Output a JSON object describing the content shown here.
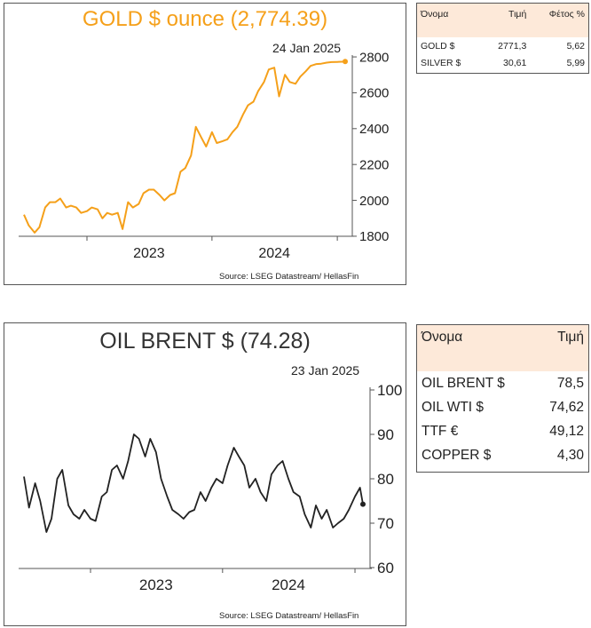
{
  "gold": {
    "title": "GOLD $ ounce (2,774.39)",
    "date": "24 Jan 2025",
    "source": "Source: LSEG Datastream/ HellasFin",
    "color": "#f5a01a",
    "chart_data": {
      "type": "line",
      "title": "GOLD $ ounce (2,774.39)",
      "x_labels": [
        "2023",
        "2024"
      ],
      "y_ticks": [
        1800,
        2000,
        2200,
        2400,
        2600,
        2800
      ],
      "ylim": [
        1770,
        2830
      ],
      "x_range": [
        "2022-07",
        "2025-01"
      ],
      "series": [
        {
          "x": [
            "2022-07-01",
            "2022-07-15",
            "2022-08-01",
            "2022-08-15",
            "2022-09-01",
            "2022-09-15",
            "2022-10-01",
            "2022-10-15",
            "2022-11-01",
            "2022-11-15",
            "2022-12-01",
            "2022-12-15",
            "2023-01-01",
            "2023-01-15",
            "2023-02-01",
            "2023-02-15",
            "2023-03-01",
            "2023-03-15",
            "2023-04-01",
            "2023-04-15",
            "2023-05-01",
            "2023-05-15",
            "2023-06-01",
            "2023-06-15",
            "2023-07-01",
            "2023-07-15",
            "2023-08-01",
            "2023-08-15",
            "2023-09-01",
            "2023-09-15",
            "2023-10-01",
            "2023-10-15",
            "2023-11-01",
            "2023-11-15",
            "2023-12-01",
            "2023-12-15",
            "2024-01-01",
            "2024-01-15",
            "2024-02-01",
            "2024-02-15",
            "2024-03-01",
            "2024-03-15",
            "2024-04-01",
            "2024-04-15",
            "2024-05-01",
            "2024-05-15",
            "2024-06-01",
            "2024-06-15",
            "2024-07-01",
            "2024-07-15",
            "2024-08-01",
            "2024-08-15",
            "2024-09-01",
            "2024-09-15",
            "2024-10-01",
            "2024-10-15",
            "2024-11-01",
            "2024-11-15",
            "2024-12-01",
            "2024-12-15",
            "2025-01-01",
            "2025-01-15",
            "2025-01-24"
          ],
          "y": [
            1920,
            1860,
            1820,
            1850,
            1960,
            1990,
            1990,
            2010,
            1960,
            1970,
            1960,
            1930,
            1940,
            1960,
            1950,
            1900,
            1930,
            1920,
            1930,
            1840,
            1990,
            1960,
            1980,
            2040,
            2060,
            2060,
            2030,
            2000,
            2030,
            2040,
            2160,
            2180,
            2250,
            2410,
            2350,
            2300,
            2380,
            2320,
            2330,
            2340,
            2380,
            2410,
            2480,
            2530,
            2550,
            2610,
            2660,
            2730,
            2740,
            2580,
            2700,
            2660,
            2650,
            2690,
            2720,
            2750,
            2760,
            2762,
            2768,
            2771,
            2772,
            2773,
            2774
          ],
          "last_value": 2774.39
        }
      ]
    },
    "table": {
      "headers": [
        "Όνομα",
        "Τιμή",
        "Φέτος %"
      ],
      "rows": [
        [
          "GOLD $",
          "2771,3",
          "5,62"
        ],
        [
          "SILVER $",
          "30,61",
          "5,99"
        ]
      ]
    }
  },
  "oil": {
    "title": "OIL BRENT $ (74.28)",
    "date": "23 Jan 2025",
    "source": "Source: LSEG Datastream/ HellasFin",
    "color": "#222222",
    "chart_data": {
      "type": "line",
      "title": "OIL BRENT $ (74.28)",
      "x_labels": [
        "2023",
        "2024"
      ],
      "y_ticks": [
        60,
        70,
        80,
        90,
        100
      ],
      "ylim": [
        60,
        100
      ],
      "x_range": [
        "2022-07",
        "2025-01"
      ],
      "series": [
        {
          "x": [
            "2022-07-01",
            "2022-07-15",
            "2022-08-01",
            "2022-08-15",
            "2022-09-01",
            "2022-09-15",
            "2022-10-01",
            "2022-10-15",
            "2022-11-01",
            "2022-11-15",
            "2022-12-01",
            "2022-12-15",
            "2023-01-01",
            "2023-01-15",
            "2023-02-01",
            "2023-02-15",
            "2023-03-01",
            "2023-03-15",
            "2023-04-01",
            "2023-04-15",
            "2023-05-01",
            "2023-05-15",
            "2023-06-01",
            "2023-06-15",
            "2023-07-01",
            "2023-07-15",
            "2023-08-01",
            "2023-08-15",
            "2023-09-01",
            "2023-09-15",
            "2023-10-01",
            "2023-10-15",
            "2023-11-01",
            "2023-11-15",
            "2023-12-01",
            "2023-12-15",
            "2024-01-01",
            "2024-01-15",
            "2024-02-01",
            "2024-02-15",
            "2024-03-01",
            "2024-03-15",
            "2024-04-01",
            "2024-04-15",
            "2024-05-01",
            "2024-05-15",
            "2024-06-01",
            "2024-06-15",
            "2024-07-01",
            "2024-07-15",
            "2024-08-01",
            "2024-08-15",
            "2024-09-01",
            "2024-09-15",
            "2024-10-01",
            "2024-10-15",
            "2024-11-01",
            "2024-11-15",
            "2024-12-01",
            "2024-12-15",
            "2025-01-01",
            "2025-01-15",
            "2025-01-23"
          ],
          "y": [
            80.5,
            73.5,
            79.0,
            75.0,
            68.0,
            71.0,
            80.0,
            82.0,
            74.0,
            72.0,
            71.0,
            73.0,
            71.0,
            70.5,
            76.0,
            77.0,
            82.0,
            83.0,
            80.0,
            84.0,
            90.0,
            89.0,
            85.0,
            89.0,
            86.0,
            80.0,
            76.0,
            73.0,
            72.0,
            71.0,
            72.5,
            73.0,
            77.0,
            75.0,
            78.0,
            80.0,
            79.0,
            83.0,
            87.0,
            85.0,
            83.0,
            78.0,
            80.0,
            77.0,
            75.0,
            81.0,
            83.0,
            84.0,
            80.0,
            77.0,
            76.0,
            72.0,
            69.0,
            74.0,
            71.0,
            73.0,
            69.0,
            70.0,
            71.0,
            73.0,
            76.0,
            78.0,
            74.28
          ],
          "last_value": 74.28
        }
      ]
    },
    "table": {
      "headers": [
        "Όνομα",
        "Τιμή"
      ],
      "rows": [
        [
          "OIL BRENT $",
          "78,5"
        ],
        [
          "OIL WTI $",
          "74,62"
        ],
        [
          "TTF €",
          "49,12"
        ],
        [
          "COPPER $",
          "4,30"
        ]
      ]
    }
  }
}
